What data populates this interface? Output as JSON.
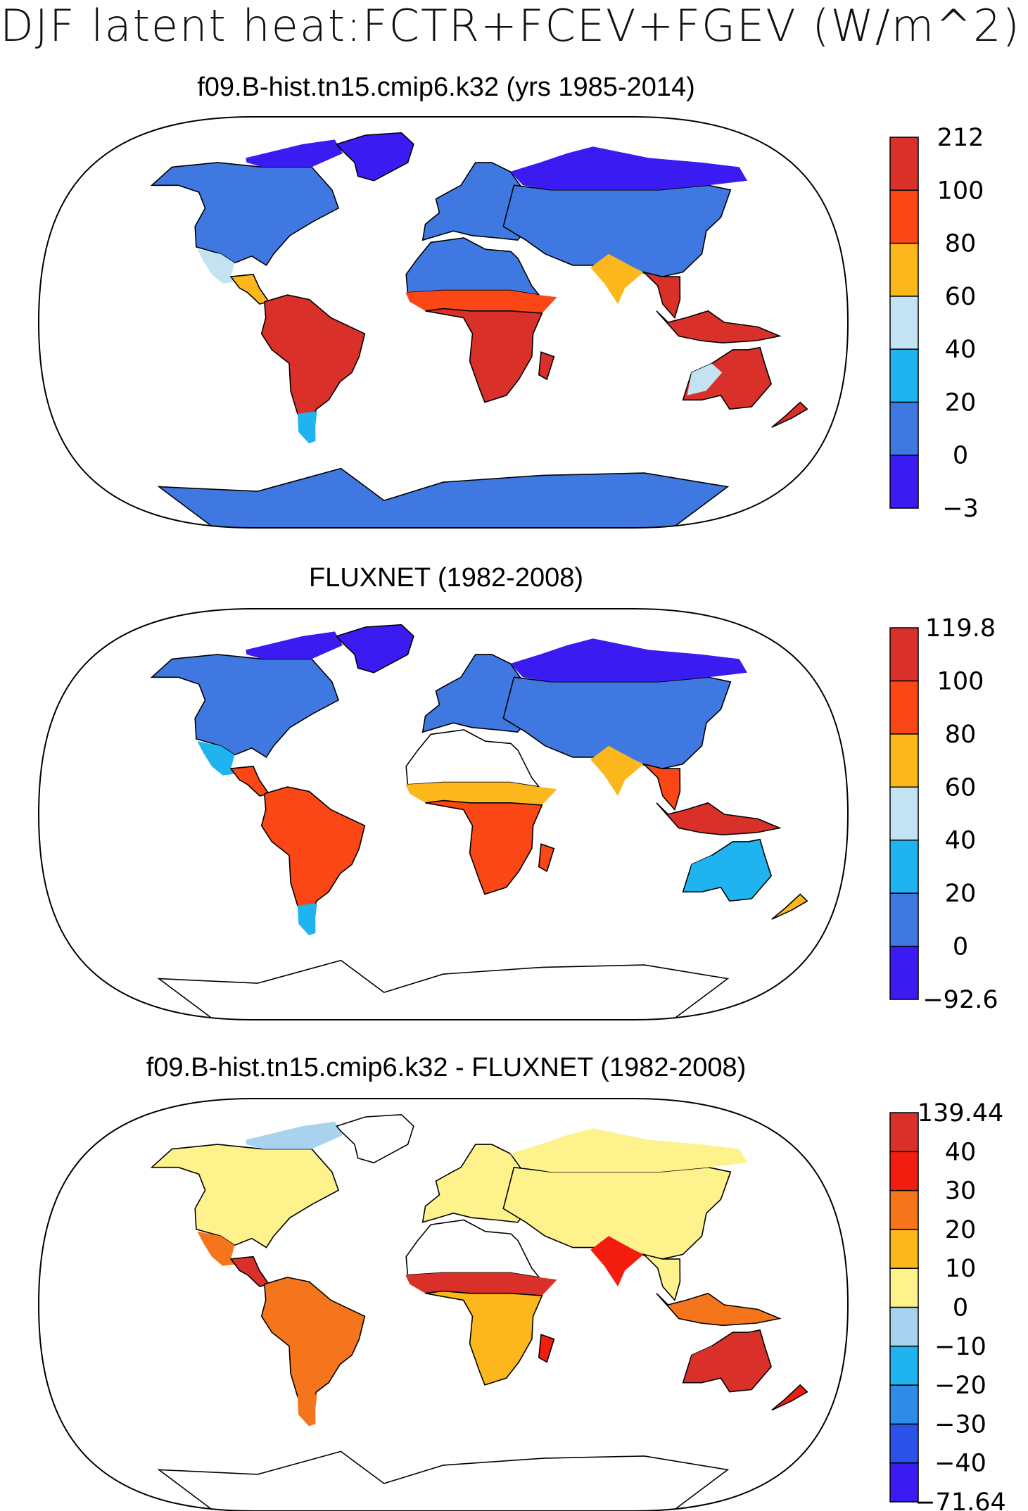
{
  "figure_title": "DJF latent heat:FCTR+FCEV+FGEV (W/m^2)",
  "colors": {
    "map_outline": "#000000",
    "ocean": "#ffffff",
    "coast": "#000000"
  },
  "panels": [
    {
      "title": "f09.B-hist.tn15.cmip6.k32 (yrs 1985-2014)",
      "colorbar": {
        "labels": [
          "212",
          "100",
          "80",
          "60",
          "40",
          "20",
          "0",
          "−3"
        ],
        "colors": [
          "#3a1bf2",
          "#3f78e0",
          "#1fb4ef",
          "#c3e2f2",
          "#fbb71b",
          "#fa4715",
          "#d9312a"
        ]
      },
      "regions": {
        "north_america": "#3f78e0",
        "greenland": "#3a1bf2",
        "arctic_canada": "#3a1bf2",
        "mexico": "#c3e2f2",
        "central_america": "#fbb71b",
        "south_america": "#d9312a",
        "patagonia": "#1fb4ef",
        "europe": "#3f78e0",
        "north_africa": "#3f78e0",
        "sahel": "#fa4715",
        "africa_south": "#d9312a",
        "madagascar": "#d9312a",
        "asia": "#3f78e0",
        "siberia": "#3a1bf2",
        "india": "#fbb71b",
        "se_asia": "#d9312a",
        "indonesia": "#d9312a",
        "australia": "#d9312a",
        "australia_west": "#c3e2f2",
        "new_zealand": "#d9312a",
        "antarctica": "#3f78e0"
      }
    },
    {
      "title": "FLUXNET (1982-2008)",
      "colorbar": {
        "labels": [
          "119.8",
          "100",
          "80",
          "60",
          "40",
          "20",
          "0",
          "−92.6"
        ],
        "colors": [
          "#3a1bf2",
          "#3f78e0",
          "#1fb4ef",
          "#c3e2f2",
          "#fbb71b",
          "#fa4715",
          "#d9312a"
        ]
      },
      "regions": {
        "north_america": "#3f78e0",
        "greenland": "#3a1bf2",
        "arctic_canada": "#3a1bf2",
        "mexico": "#1fb4ef",
        "central_america": "#fa4715",
        "south_america": "#fa4715",
        "patagonia": "#1fb4ef",
        "europe": "#3f78e0",
        "north_africa": "#ffffff",
        "sahel": "#fbb71b",
        "africa_south": "#fa4715",
        "madagascar": "#fa4715",
        "asia": "#3f78e0",
        "siberia": "#3a1bf2",
        "india": "#fbb71b",
        "se_asia": "#fa4715",
        "indonesia": "#d9312a",
        "australia": "#1fb4ef",
        "australia_west": "#1fb4ef",
        "new_zealand": "#fbb71b",
        "antarctica": "#ffffff"
      }
    },
    {
      "title": "f09.B-hist.tn15.cmip6.k32 - FLUXNET (1982-2008)",
      "colorbar": {
        "labels": [
          "139.44",
          "40",
          "30",
          "20",
          "10",
          "0",
          "−10",
          "−20",
          "−30",
          "−40",
          "−71.64"
        ],
        "colors": [
          "#3a1bf2",
          "#2b52e8",
          "#2f8ce6",
          "#1fb4ef",
          "#a8d2ee",
          "#fdf28c",
          "#fbb71b",
          "#f5751c",
          "#f21d0e",
          "#d9312a"
        ]
      },
      "regions": {
        "north_america": "#fdf28c",
        "greenland": "#ffffff",
        "arctic_canada": "#a8d2ee",
        "mexico": "#f5751c",
        "central_america": "#d9312a",
        "south_america": "#f5751c",
        "patagonia": "#f5751c",
        "europe": "#fdf28c",
        "north_africa": "#ffffff",
        "sahel": "#d9312a",
        "africa_south": "#fbb71b",
        "madagascar": "#f21d0e",
        "asia": "#fdf28c",
        "siberia": "#fdf28c",
        "india": "#f21d0e",
        "se_asia": "#fdf28c",
        "indonesia": "#f5751c",
        "australia": "#d9312a",
        "australia_west": "#d9312a",
        "new_zealand": "#f21d0e",
        "antarctica": "#ffffff"
      }
    }
  ]
}
